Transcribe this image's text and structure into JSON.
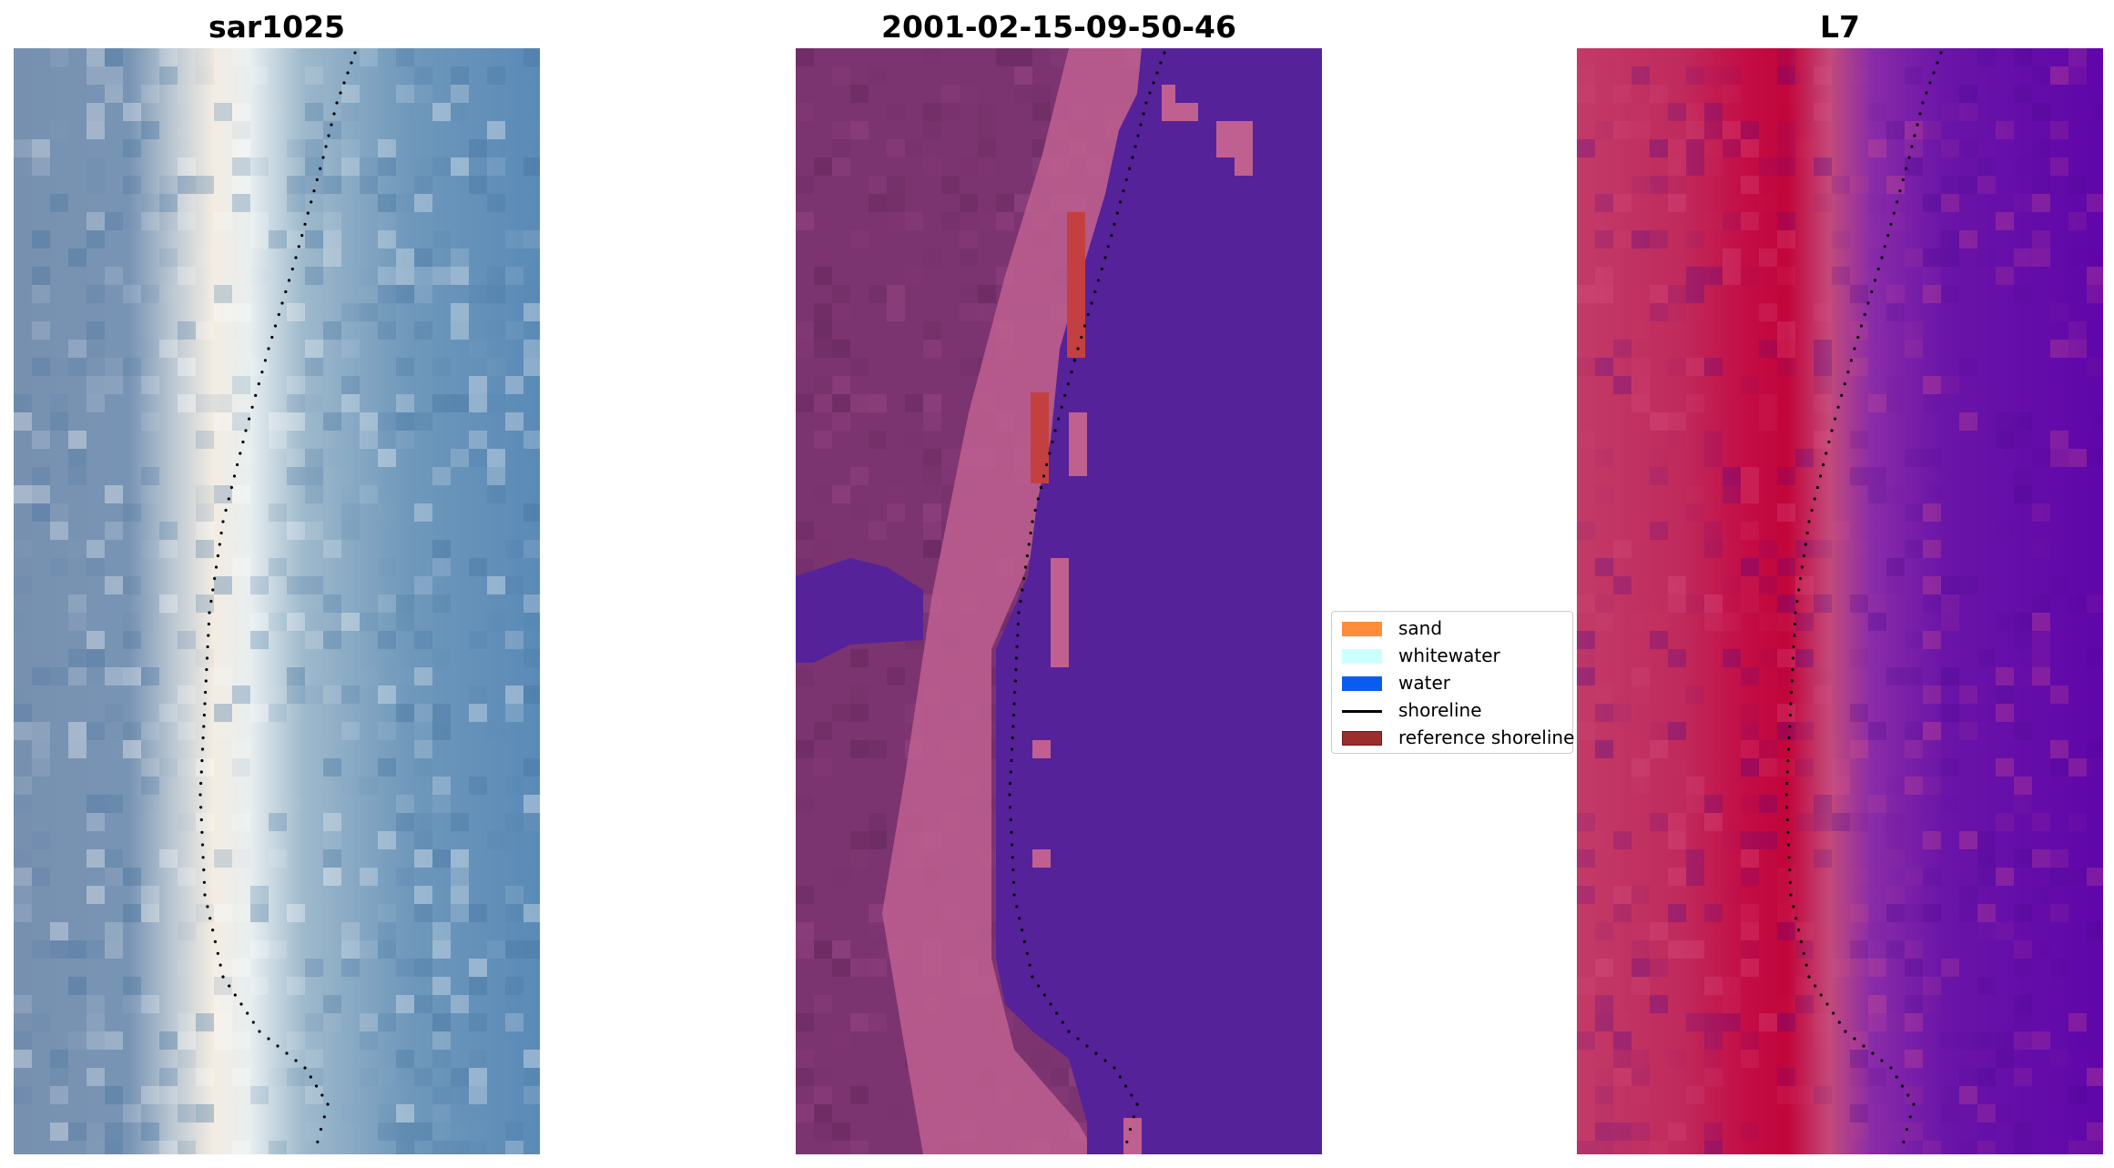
{
  "panels": [
    {
      "title": "sar1025"
    },
    {
      "title": "2001-02-15-09-50-46"
    },
    {
      "title": "L7"
    }
  ],
  "legend": {
    "items": [
      {
        "label": "sand",
        "color": "#ff8c3a"
      },
      {
        "label": "whitewater",
        "color": "#ccffff"
      },
      {
        "label": "water",
        "color": "#0a5cf0"
      },
      {
        "label": "shoreline",
        "color": "#000000"
      },
      {
        "label": "reference shoreline",
        "color": "#9a2e2e"
      }
    ]
  },
  "colors": {
    "rgb_land": "#6f8db0",
    "rgb_sea": "#5a8ab7",
    "rgb_beach": "#f5ece0",
    "class_land": "#7c3470",
    "class_beach": "#c06090",
    "class_water": "#55229a",
    "class_reference": "#c44040",
    "nir_land": "#c02a5c",
    "nir_dune": "#c0063a",
    "nir_water": "#6a12a8",
    "shoreline": "#000000"
  }
}
